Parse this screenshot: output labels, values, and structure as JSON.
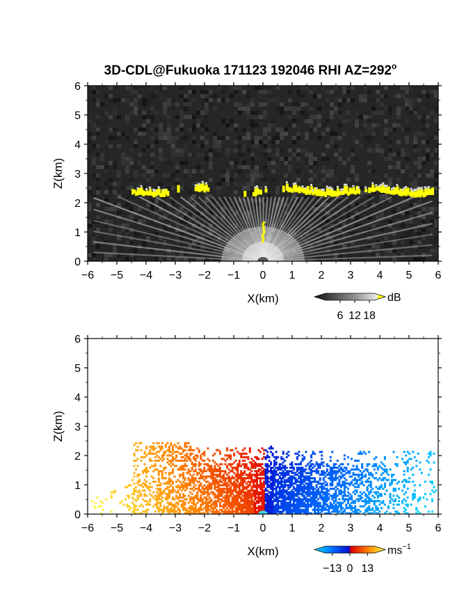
{
  "title": {
    "main": "3D-CDL@Fukuoka 171123 192046 RHI AZ=292",
    "degree": "o"
  },
  "chart_data": [
    {
      "type": "heatmap",
      "name_key": "backscatter-panel",
      "xlabel": "X(km)",
      "ylabel": "Z(km)",
      "xlim": [
        -6,
        6
      ],
      "ylim": [
        0,
        6
      ],
      "xticks": [
        -6,
        -5,
        -4,
        -3,
        -2,
        -1,
        0,
        1,
        2,
        3,
        4,
        5,
        6
      ],
      "yticks": [
        0,
        1,
        2,
        3,
        4,
        5,
        6
      ],
      "colorbar": {
        "unit": "dB",
        "tick_labels": [
          "6",
          "12",
          "18"
        ],
        "tick_values": [
          6,
          12,
          18
        ],
        "range": [
          0,
          20
        ],
        "colors": [
          "#111111",
          "#555555",
          "#999999",
          "#dddddd",
          "#ffff00"
        ]
      },
      "features": {
        "cloud_base_km": 2.2,
        "cloud_x_extent_km": [
          -4.5,
          5.8
        ],
        "high_signal_color": "#ffff00"
      }
    },
    {
      "type": "heatmap",
      "name_key": "velocity-panel",
      "xlabel": "X(km)",
      "ylabel": "Z(km)",
      "xlim": [
        -6,
        6
      ],
      "ylim": [
        0,
        6
      ],
      "xticks": [
        -6,
        -5,
        -4,
        -3,
        -2,
        -1,
        0,
        1,
        2,
        3,
        4,
        5,
        6
      ],
      "yticks": [
        0,
        1,
        2,
        3,
        4,
        5,
        6
      ],
      "colorbar": {
        "unit": "ms",
        "unit_exponent": "−1",
        "tick_labels": [
          "−13",
          "0",
          "13"
        ],
        "tick_values": [
          -13,
          0,
          13
        ],
        "range": [
          -18,
          18
        ],
        "colors": [
          "#00e0ff",
          "#0070ff",
          "#0010d0",
          "#e00000",
          "#ff8000",
          "#ffff40"
        ]
      },
      "features": {
        "data_x_extent_km": [
          -6,
          5.9
        ],
        "data_top_km": 2.5
      }
    }
  ]
}
